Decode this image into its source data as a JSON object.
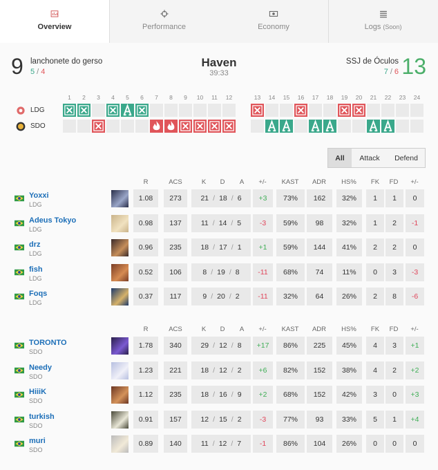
{
  "tabs": [
    {
      "label": "Overview"
    },
    {
      "label": "Performance"
    },
    {
      "label": "Economy"
    },
    {
      "label": "Logs",
      "note": "(Soon)"
    }
  ],
  "header": {
    "sep": "/",
    "map": "Haven",
    "duration": "39:33",
    "teams": [
      {
        "score": "9",
        "name": "lanchonete do gerso",
        "attack": "5",
        "defense": "4",
        "color": "#333333"
      },
      {
        "score": "13",
        "name": "SSJ de Óculos",
        "attack": "7",
        "defense": "6",
        "color": "#4caf6a"
      }
    ]
  },
  "round_teams": [
    "LDG",
    "SDO"
  ],
  "rounds": [
    {
      "label": "1",
      "winner": 0,
      "result": "elim",
      "color": "#3aa88b"
    },
    {
      "label": "2",
      "winner": 0,
      "result": "elim",
      "color": "#3aa88b"
    },
    {
      "label": "3",
      "winner": 1,
      "result": "elim",
      "color": "#e0555a"
    },
    {
      "label": "4",
      "winner": 0,
      "result": "elim",
      "color": "#3aa88b"
    },
    {
      "label": "5",
      "winner": 0,
      "result": "defuse",
      "color": "#3aa88b"
    },
    {
      "label": "6",
      "winner": 0,
      "result": "elim",
      "color": "#3aa88b"
    },
    {
      "label": "7",
      "winner": 1,
      "result": "boom",
      "color": "#e0555a"
    },
    {
      "label": "8",
      "winner": 1,
      "result": "boom",
      "color": "#e0555a"
    },
    {
      "label": "9",
      "winner": 1,
      "result": "elim",
      "color": "#e0555a"
    },
    {
      "label": "10",
      "winner": 1,
      "result": "elim",
      "color": "#e0555a"
    },
    {
      "label": "11",
      "winner": 1,
      "result": "elim",
      "color": "#e0555a"
    },
    {
      "label": "12",
      "winner": 1,
      "result": "elim",
      "color": "#e0555a"
    },
    {
      "label": "13",
      "winner": 0,
      "result": "elim",
      "color": "#e0555a"
    },
    {
      "label": "14",
      "winner": 1,
      "result": "defuse",
      "color": "#3aa88b"
    },
    {
      "label": "15",
      "winner": 1,
      "result": "defuse",
      "color": "#3aa88b"
    },
    {
      "label": "16",
      "winner": 0,
      "result": "elim",
      "color": "#e0555a"
    },
    {
      "label": "17",
      "winner": 1,
      "result": "defuse",
      "color": "#3aa88b"
    },
    {
      "label": "18",
      "winner": 1,
      "result": "defuse",
      "color": "#3aa88b"
    },
    {
      "label": "19",
      "winner": 0,
      "result": "elim",
      "color": "#e0555a"
    },
    {
      "label": "20",
      "winner": 0,
      "result": "elim",
      "color": "#e0555a"
    },
    {
      "label": "21",
      "winner": 1,
      "result": "defuse",
      "color": "#3aa88b"
    },
    {
      "label": "22",
      "winner": 1,
      "result": "defuse",
      "color": "#3aa88b"
    },
    {
      "label": "23"
    },
    {
      "label": "24"
    }
  ],
  "filters": [
    "All",
    "Attack",
    "Defend"
  ],
  "scoreboard": {
    "columns": [
      "R",
      "ACS",
      "K",
      "D",
      "A",
      "+/-",
      "KAST",
      "ADR",
      "HS%",
      "FK",
      "FD",
      "+/-"
    ],
    "kda_sep": "/",
    "teams": [
      {
        "players": [
          {
            "name": "Yoxxi",
            "team": "LDG",
            "stats": [
              "1.08",
              "273",
              "21",
              "18",
              "6",
              "+3",
              "73%",
              "162",
              "32%",
              "1",
              "1",
              "0"
            ]
          },
          {
            "name": "Adeus Tokyo",
            "team": "LDG",
            "stats": [
              "0.98",
              "137",
              "11",
              "14",
              "5",
              "-3",
              "59%",
              "98",
              "32%",
              "1",
              "2",
              "-1"
            ]
          },
          {
            "name": "drz",
            "team": "LDG",
            "stats": [
              "0.96",
              "235",
              "18",
              "17",
              "1",
              "+1",
              "59%",
              "144",
              "41%",
              "2",
              "2",
              "0"
            ]
          },
          {
            "name": "fish",
            "team": "LDG",
            "stats": [
              "0.52",
              "106",
              "8",
              "19",
              "8",
              "-11",
              "68%",
              "74",
              "11%",
              "0",
              "3",
              "-3"
            ]
          },
          {
            "name": "Foqs",
            "team": "LDG",
            "stats": [
              "0.37",
              "117",
              "9",
              "20",
              "2",
              "-11",
              "32%",
              "64",
              "26%",
              "2",
              "8",
              "-6"
            ]
          }
        ]
      },
      {
        "players": [
          {
            "name": "TORONTO",
            "team": "SDO",
            "stats": [
              "1.78",
              "340",
              "29",
              "12",
              "8",
              "+17",
              "86%",
              "225",
              "45%",
              "4",
              "3",
              "+1"
            ]
          },
          {
            "name": "Needy",
            "team": "SDO",
            "stats": [
              "1.23",
              "221",
              "18",
              "12",
              "2",
              "+6",
              "82%",
              "152",
              "38%",
              "4",
              "2",
              "+2"
            ]
          },
          {
            "name": "HiiiK",
            "team": "SDO",
            "stats": [
              "1.12",
              "235",
              "18",
              "16",
              "9",
              "+2",
              "68%",
              "152",
              "42%",
              "3",
              "0",
              "+3"
            ]
          },
          {
            "name": "turkish",
            "team": "SDO",
            "stats": [
              "0.91",
              "157",
              "12",
              "15",
              "2",
              "-3",
              "77%",
              "93",
              "33%",
              "5",
              "1",
              "+4"
            ]
          },
          {
            "name": "muri",
            "team": "SDO",
            "stats": [
              "0.89",
              "140",
              "11",
              "12",
              "7",
              "-1",
              "86%",
              "104",
              "26%",
              "0",
              "0",
              "0"
            ]
          }
        ]
      }
    ]
  }
}
